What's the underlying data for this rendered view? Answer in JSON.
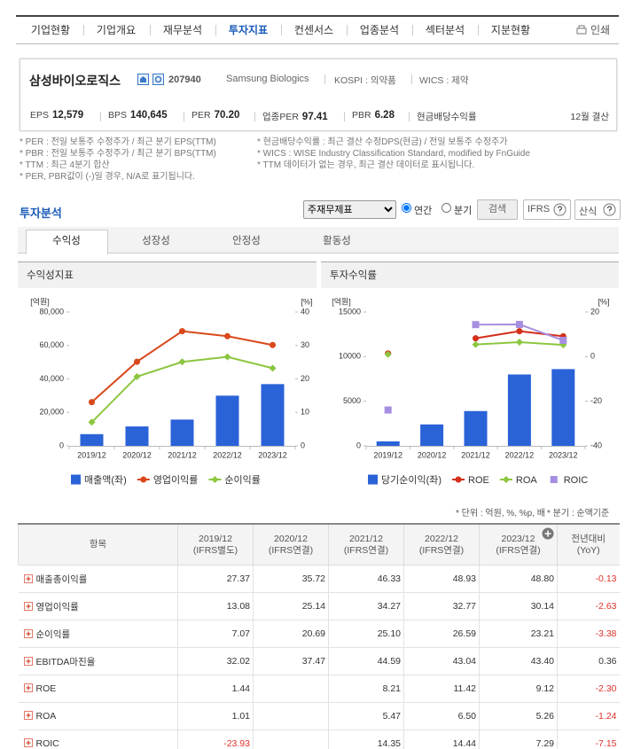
{
  "nav": {
    "tabs": [
      "기업현황",
      "기업개요",
      "재무분석",
      "투자지표",
      "컨센서스",
      "업종분석",
      "섹터분석",
      "지분현황"
    ],
    "print": "인쇄"
  },
  "company": {
    "name": "삼성바이오로직스",
    "code": "207940",
    "name_en": "Samsung Biologics",
    "market": "KOSPI : 의약품",
    "wics": "WICS : 제약",
    "metrics": [
      {
        "label": "EPS",
        "value": "12,579"
      },
      {
        "label": "BPS",
        "value": "140,645"
      },
      {
        "label": "PER",
        "value": "70.20"
      },
      {
        "label": "업종PER",
        "value": "97.41"
      },
      {
        "label": "PBR",
        "value": "6.28"
      },
      {
        "label": "현금배당수익률"
      }
    ],
    "fiscal": "12월 결산"
  },
  "notes": {
    "left": [
      "* PER : 전일 보통주 수정주가 / 최근 분기 EPS(TTM)",
      "* PBR : 전일 보통주 수정주가 / 최근 분기 BPS(TTM)",
      "* TTM : 최근 4분기 합산",
      "* PER, PBR값이 (-)일 경우, N/A로 표기됩니다."
    ],
    "right": [
      "* 현금배당수익률 : 최근 결산 수정DPS(현금) / 전일 보통주 수정주가",
      "* WICS : WISE Industry Classification Standard, modified by FnGuide",
      "* TTM 데이터가 없는 경우, 최근 결산 데이터로 표시됩니다."
    ]
  },
  "analysis": {
    "title": "투자분석",
    "select": "주재무제표",
    "radios": [
      "연간",
      "분기"
    ],
    "search": "검색",
    "ifrs": "IFRS",
    "formula": "산식"
  },
  "tabs": [
    "수익성",
    "성장성",
    "안정성",
    "활동성"
  ],
  "chart_data": [
    {
      "type": "combo",
      "title": "수익성지표",
      "y_label": "[억원]",
      "y2_label": "[%]",
      "categories": [
        "2019/12",
        "2020/12",
        "2021/12",
        "2022/12",
        "2023/12"
      ],
      "ylim": [
        0,
        80000
      ],
      "yticks": [
        0,
        {
          "value": 20000,
          "label": "20,000"
        },
        {
          "value": 40000,
          "label": "40,000"
        },
        {
          "value": 60000,
          "label": "60,000"
        },
        {
          "value": 80000,
          "label": "80,000"
        }
      ],
      "y2lim": [
        0,
        40
      ],
      "y2ticks": [
        0,
        10,
        20,
        30,
        40
      ],
      "series": [
        {
          "name": "매출액(좌)",
          "type": "bar",
          "color": "#2a62d8",
          "values": [
            7000,
            11600,
            15700,
            30000,
            36900
          ]
        },
        {
          "name": "영업이익률",
          "type": "line",
          "marker": "circle",
          "color": "#d9481c",
          "axis": "y2",
          "values": [
            13.08,
            25.14,
            34.27,
            32.77,
            30.14
          ]
        },
        {
          "name": "순이익률",
          "type": "line",
          "marker": "diamond",
          "color": "#8cc63f",
          "axis": "y2",
          "values": [
            7.07,
            20.69,
            25.1,
            26.59,
            23.21
          ]
        }
      ]
    },
    {
      "type": "combo",
      "title": "투자수익률",
      "y_label": "[억원]",
      "y2_label": "[%]",
      "categories": [
        "2019/12",
        "2020/12",
        "2021/12",
        "2022/12",
        "2023/12"
      ],
      "ylim": [
        0,
        15000
      ],
      "yticks": [
        0,
        5000,
        10000,
        15000
      ],
      "y2lim": [
        -40,
        20
      ],
      "y2ticks": [
        -40,
        -20,
        0,
        20
      ],
      "series": [
        {
          "name": "당기순이익(좌)",
          "type": "bar",
          "color": "#2a62d8",
          "values": [
            500,
            2400,
            3900,
            8000,
            8600
          ]
        },
        {
          "name": "ROE",
          "type": "line",
          "marker": "circle",
          "color": "#d32f1a",
          "axis": "y2",
          "values": [
            1.44,
            null,
            8.21,
            11.42,
            9.12
          ]
        },
        {
          "name": "ROA",
          "type": "line",
          "marker": "diamond",
          "color": "#8cc63f",
          "axis": "y2",
          "values": [
            1.01,
            null,
            5.47,
            6.5,
            5.26
          ]
        },
        {
          "name": "ROIC",
          "type": "line",
          "marker": "square",
          "color": "#a68ee0",
          "axis": "y2",
          "values": [
            -23.93,
            null,
            14.35,
            14.44,
            7.29
          ]
        }
      ]
    }
  ],
  "table_notes": [
    "* 단위 : 억원, %, %p, 배",
    "* 분기 : 순액기준"
  ],
  "table": {
    "item": "항목",
    "periods": [
      {
        "date": "2019/12",
        "basis": "(IFRS별도)"
      },
      {
        "date": "2020/12",
        "basis": "(IFRS연결)"
      },
      {
        "date": "2021/12",
        "basis": "(IFRS연결)"
      },
      {
        "date": "2022/12",
        "basis": "(IFRS연결)"
      },
      {
        "date": "2023/12",
        "basis": "(IFRS연결)"
      }
    ],
    "yoy": [
      "전년대비",
      "(YoY)"
    ],
    "rows": [
      {
        "label": "매출총이익률",
        "values": [
          "27.37",
          "35.72",
          "46.33",
          "48.93",
          "48.80"
        ],
        "yoy": "-0.13"
      },
      {
        "label": "영업이익률",
        "values": [
          "13.08",
          "25.14",
          "34.27",
          "32.77",
          "30.14"
        ],
        "yoy": "-2.63"
      },
      {
        "label": "순이익률",
        "values": [
          "7.07",
          "20.69",
          "25.10",
          "26.59",
          "23.21"
        ],
        "yoy": "-3.38"
      },
      {
        "label": "EBITDA마진율",
        "values": [
          "32.02",
          "37.47",
          "44.59",
          "43.04",
          "43.40"
        ],
        "yoy": "0.36"
      },
      {
        "label": "ROE",
        "values": [
          "1.44",
          null,
          "8.21",
          "11.42",
          "9.12"
        ],
        "yoy": "-2.30"
      },
      {
        "label": "ROA",
        "values": [
          "1.01",
          null,
          "5.47",
          "6.50",
          "5.26"
        ],
        "yoy": "-1.24"
      },
      {
        "label": "ROIC",
        "values": [
          "-23.93",
          null,
          "14.35",
          "14.44",
          "7.29"
        ],
        "yoy": "-7.15"
      }
    ]
  }
}
